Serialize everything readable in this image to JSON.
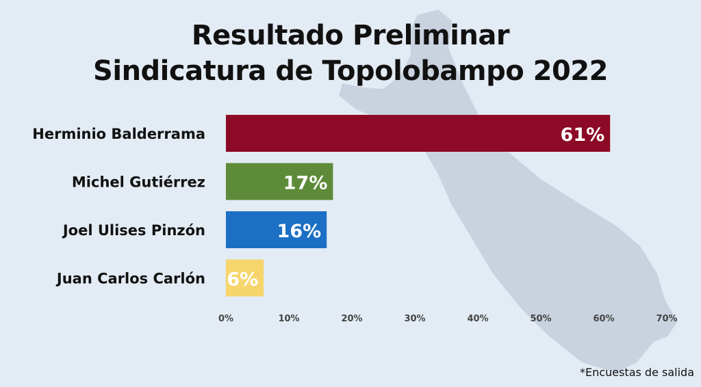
{
  "title_line1": "Resultado Preliminar",
  "title_line2": "Sindicatura de Topolobampo 2022",
  "footnote": "*Encuestas de salida",
  "chart_data": {
    "type": "bar",
    "orientation": "horizontal",
    "categories": [
      "Herminio Balderrama",
      "Michel Gutiérrez",
      "Joel Ulises Pinzón",
      "Juan Carlos Carlón"
    ],
    "values": [
      61,
      17,
      16,
      6
    ],
    "data_labels": [
      "61%",
      "17%",
      "16%",
      "6%"
    ],
    "colors": [
      "#8c0a25",
      "#5d8b3a",
      "#1b6fc4",
      "#f7d56d"
    ],
    "label_colors": [
      "#ffffff",
      "#ffffff",
      "#ffffff",
      "#ffffff"
    ],
    "xlim": [
      0,
      70
    ],
    "xticks": [
      0,
      10,
      20,
      30,
      40,
      50,
      60,
      70
    ],
    "xtick_labels": [
      "0%",
      "10%",
      "20%",
      "30%",
      "40%",
      "50%",
      "60%",
      "70%"
    ],
    "grid": false,
    "legend": "none"
  },
  "colors": {
    "background": "#e3ebf4",
    "map_silhouette": "#c9d3df"
  }
}
